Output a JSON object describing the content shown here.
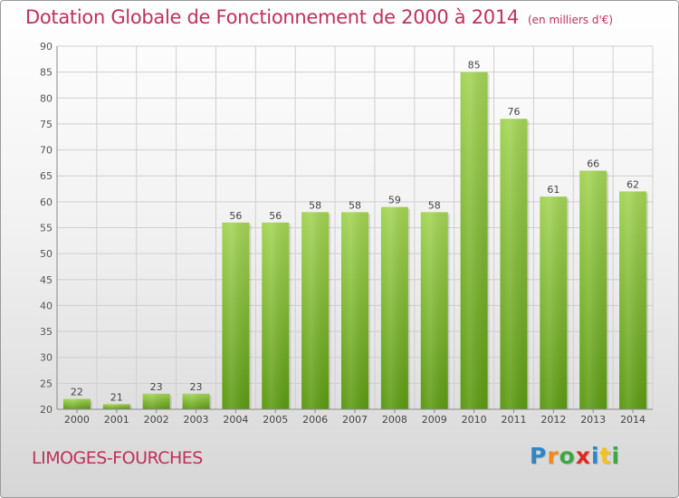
{
  "title": "Dotation Globale de Fonctionnement de 2000 à 2014",
  "subtitle": "(en milliers d'€)",
  "commune": "LIMOGES-FOURCHES",
  "logo": {
    "letters": [
      "P",
      "r",
      "o",
      "x",
      "i",
      "t",
      "i"
    ],
    "colors": [
      "#2e86c8",
      "#f08a1c",
      "#3aa845",
      "#e2281e",
      "#2e86c8",
      "#f4c21c",
      "#3aa845"
    ]
  },
  "colors": {
    "title": "#c0305a",
    "bar_light": "#9fd14e",
    "bar_dark": "#5c9a12",
    "grid": "#cfcfcf"
  },
  "chart_data": {
    "type": "bar",
    "categories": [
      "2000",
      "2001",
      "2002",
      "2003",
      "2004",
      "2005",
      "2006",
      "2007",
      "2008",
      "2009",
      "2010",
      "2011",
      "2012",
      "2013",
      "2014"
    ],
    "values": [
      22,
      21,
      23,
      23,
      56,
      56,
      58,
      58,
      59,
      58,
      85,
      76,
      61,
      66,
      62
    ],
    "yticks": [
      "20",
      "25",
      "30",
      "35",
      "40",
      "45",
      "50",
      "55",
      "60",
      "65",
      "70",
      "75",
      "80",
      "85",
      "90"
    ],
    "ylim": [
      20,
      90
    ],
    "grid": true
  }
}
